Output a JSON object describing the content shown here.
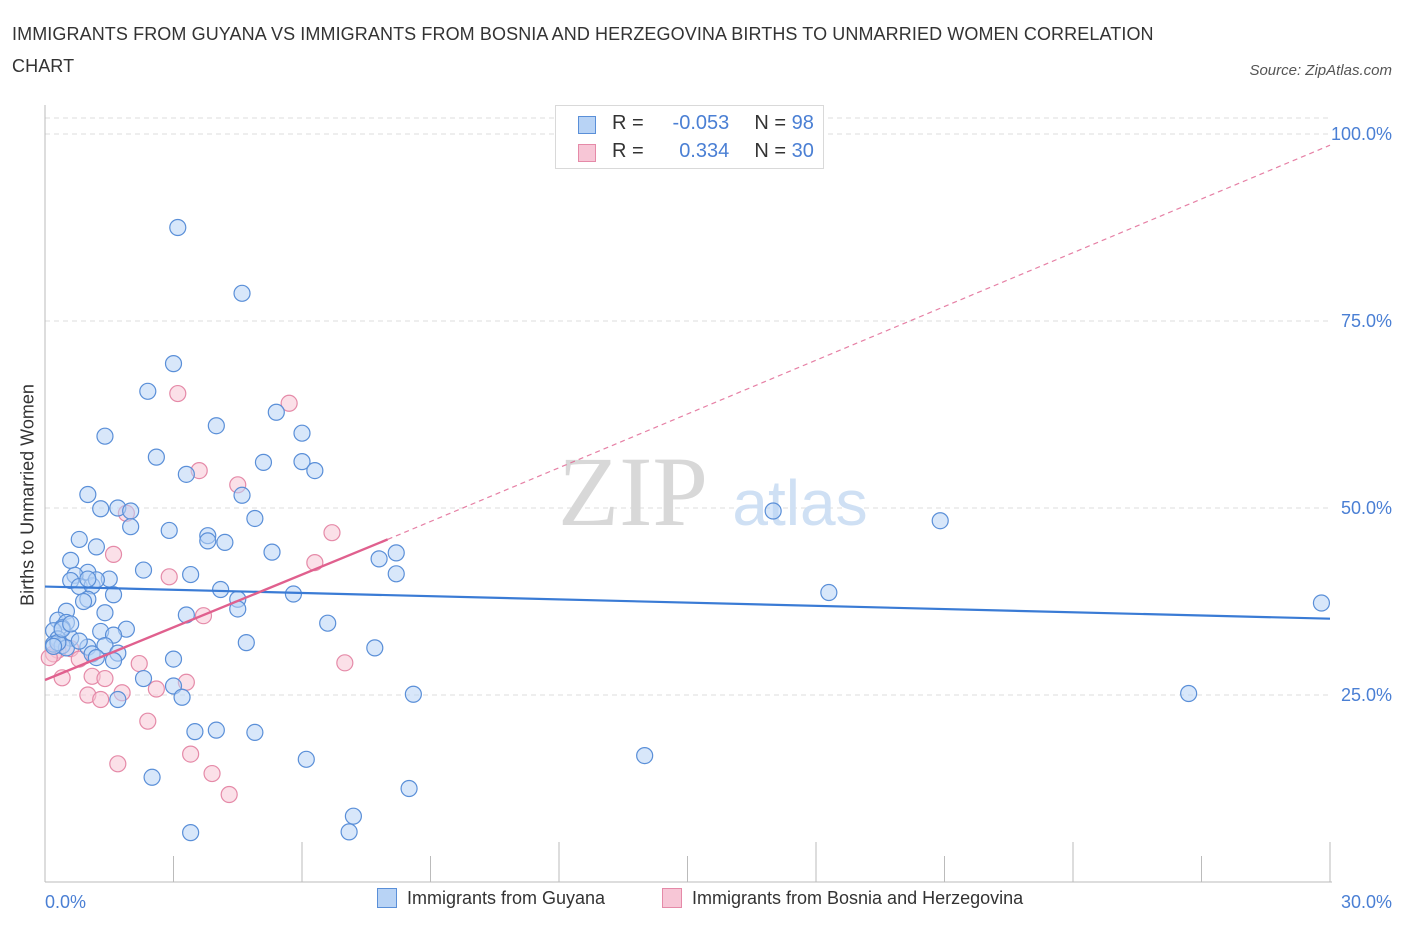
{
  "title": "IMMIGRANTS FROM GUYANA VS IMMIGRANTS FROM BOSNIA AND HERZEGOVINA BIRTHS TO UNMARRIED WOMEN CORRELATION CHART",
  "source": "Source: ZipAtlas.com",
  "watermark": {
    "zip": "ZIP",
    "atlas": "atlas"
  },
  "legend": {
    "rows": [
      {
        "r_label": "R =",
        "r_value": "-0.053",
        "n_label": "N =",
        "n_value": "98"
      },
      {
        "r_label": "R =",
        "r_value": "0.334",
        "n_label": "N =",
        "n_value": "30"
      }
    ]
  },
  "colors": {
    "blue_fill": "#b8d3f5",
    "blue_stroke": "#5a8fd8",
    "blue_line": "#3a7bd5",
    "pink_fill": "#f7c6d6",
    "pink_stroke": "#e58aa8",
    "pink_line": "#e0608e",
    "axis_text": "#4a7fd4",
    "grid": "#dddddd"
  },
  "chart_data": {
    "type": "scatter",
    "title": "IMMIGRANTS FROM GUYANA VS IMMIGRANTS FROM BOSNIA AND HERZEGOVINA BIRTHS TO UNMARRIED WOMEN CORRELATION CHART",
    "xlabel": "",
    "ylabel": "Births to Unmarried Women",
    "xlim": [
      0,
      30
    ],
    "ylim": [
      0,
      100
    ],
    "x_tick_labels": [
      "0.0%",
      "30.0%"
    ],
    "y_tick_labels": [
      "25.0%",
      "50.0%",
      "75.0%",
      "100.0%"
    ],
    "y_ticks": [
      25,
      50,
      75,
      100
    ],
    "grid": true,
    "series": [
      {
        "name": "Immigrants from Guyana",
        "r": -0.053,
        "n": 98,
        "trend": {
          "x": [
            0,
            30
          ],
          "y": [
            39.5,
            35.2
          ],
          "dashed_extension": false
        },
        "points": [
          [
            3.1,
            87.5
          ],
          [
            4.6,
            78.7
          ],
          [
            3.0,
            69.3
          ],
          [
            2.4,
            65.6
          ],
          [
            5.4,
            62.8
          ],
          [
            4.0,
            61.0
          ],
          [
            6.0,
            60.0
          ],
          [
            1.4,
            59.6
          ],
          [
            2.6,
            56.8
          ],
          [
            5.1,
            56.1
          ],
          [
            6.0,
            56.2
          ],
          [
            6.3,
            55.0
          ],
          [
            3.3,
            54.5
          ],
          [
            4.6,
            51.7
          ],
          [
            1.0,
            51.8
          ],
          [
            1.3,
            49.9
          ],
          [
            1.7,
            50.0
          ],
          [
            2.0,
            49.6
          ],
          [
            4.9,
            48.6
          ],
          [
            2.0,
            47.5
          ],
          [
            2.9,
            47.0
          ],
          [
            3.8,
            46.3
          ],
          [
            3.8,
            45.6
          ],
          [
            4.2,
            45.4
          ],
          [
            0.8,
            45.8
          ],
          [
            1.2,
            44.8
          ],
          [
            5.3,
            44.1
          ],
          [
            8.2,
            44.0
          ],
          [
            7.8,
            43.2
          ],
          [
            0.6,
            43.0
          ],
          [
            2.3,
            41.7
          ],
          [
            8.2,
            41.2
          ],
          [
            1.0,
            41.4
          ],
          [
            0.7,
            41.0
          ],
          [
            0.6,
            40.3
          ],
          [
            0.8,
            39.5
          ],
          [
            1.1,
            39.6
          ],
          [
            1.5,
            40.5
          ],
          [
            1.2,
            40.4
          ],
          [
            3.4,
            41.1
          ],
          [
            4.1,
            39.1
          ],
          [
            5.8,
            38.5
          ],
          [
            1.6,
            38.4
          ],
          [
            1.0,
            37.8
          ],
          [
            0.9,
            37.5
          ],
          [
            4.5,
            37.8
          ],
          [
            4.5,
            36.5
          ],
          [
            1.4,
            36.0
          ],
          [
            3.3,
            35.7
          ],
          [
            0.5,
            36.2
          ],
          [
            6.6,
            34.6
          ],
          [
            0.3,
            35.0
          ],
          [
            0.5,
            34.7
          ],
          [
            0.4,
            34.0
          ],
          [
            0.2,
            33.6
          ],
          [
            1.3,
            33.5
          ],
          [
            1.9,
            33.8
          ],
          [
            1.6,
            33.0
          ],
          [
            0.6,
            32.6
          ],
          [
            0.3,
            32.5
          ],
          [
            0.2,
            31.8
          ],
          [
            0.4,
            31.6
          ],
          [
            0.5,
            31.3
          ],
          [
            1.4,
            31.6
          ],
          [
            1.0,
            31.4
          ],
          [
            4.7,
            32.0
          ],
          [
            7.7,
            31.3
          ],
          [
            1.1,
            30.5
          ],
          [
            1.7,
            30.6
          ],
          [
            1.2,
            30.0
          ],
          [
            1.6,
            29.6
          ],
          [
            3.0,
            29.8
          ],
          [
            2.3,
            27.2
          ],
          [
            3.0,
            26.2
          ],
          [
            3.2,
            24.7
          ],
          [
            8.6,
            25.1
          ],
          [
            1.7,
            24.4
          ],
          [
            3.5,
            20.1
          ],
          [
            4.0,
            20.3
          ],
          [
            4.9,
            20.0
          ],
          [
            6.1,
            16.4
          ],
          [
            2.5,
            14.0
          ],
          [
            8.5,
            12.5
          ],
          [
            7.2,
            8.8
          ],
          [
            7.1,
            6.7
          ],
          [
            3.4,
            6.6
          ],
          [
            17.0,
            49.6
          ],
          [
            20.9,
            48.3
          ],
          [
            18.3,
            38.7
          ],
          [
            29.8,
            37.3
          ],
          [
            26.7,
            25.2
          ],
          [
            14.0,
            16.9
          ],
          [
            0.3,
            32.0
          ],
          [
            0.8,
            32.2
          ],
          [
            1.0,
            40.5
          ],
          [
            0.2,
            31.5
          ],
          [
            0.4,
            33.8
          ],
          [
            0.6,
            34.5
          ]
        ]
      },
      {
        "name": "Immigrants from Bosnia and Herzegovina",
        "r": 0.334,
        "n": 30,
        "trend": {
          "x": [
            0,
            8
          ],
          "y": [
            27.0,
            45.8
          ],
          "dashed_extension_to": [
            30,
            98.5
          ]
        },
        "points": [
          [
            3.1,
            65.3
          ],
          [
            5.7,
            64.0
          ],
          [
            3.6,
            55.0
          ],
          [
            4.5,
            53.1
          ],
          [
            1.9,
            49.3
          ],
          [
            6.7,
            46.7
          ],
          [
            1.6,
            43.8
          ],
          [
            6.3,
            42.7
          ],
          [
            2.9,
            40.8
          ],
          [
            3.7,
            35.6
          ],
          [
            0.6,
            31.2
          ],
          [
            0.3,
            31.0
          ],
          [
            0.2,
            30.5
          ],
          [
            0.1,
            30.0
          ],
          [
            0.8,
            29.8
          ],
          [
            2.2,
            29.2
          ],
          [
            7.0,
            29.3
          ],
          [
            1.1,
            27.5
          ],
          [
            1.4,
            27.2
          ],
          [
            3.3,
            26.7
          ],
          [
            2.6,
            25.8
          ],
          [
            0.4,
            27.3
          ],
          [
            1.8,
            25.3
          ],
          [
            1.0,
            25.0
          ],
          [
            1.3,
            24.4
          ],
          [
            2.4,
            21.5
          ],
          [
            3.4,
            17.1
          ],
          [
            1.7,
            15.8
          ],
          [
            3.9,
            14.5
          ],
          [
            4.3,
            11.7
          ]
        ]
      }
    ]
  },
  "bottom_legend": [
    "Immigrants from Guyana",
    "Immigrants from Bosnia and Herzegovina"
  ]
}
